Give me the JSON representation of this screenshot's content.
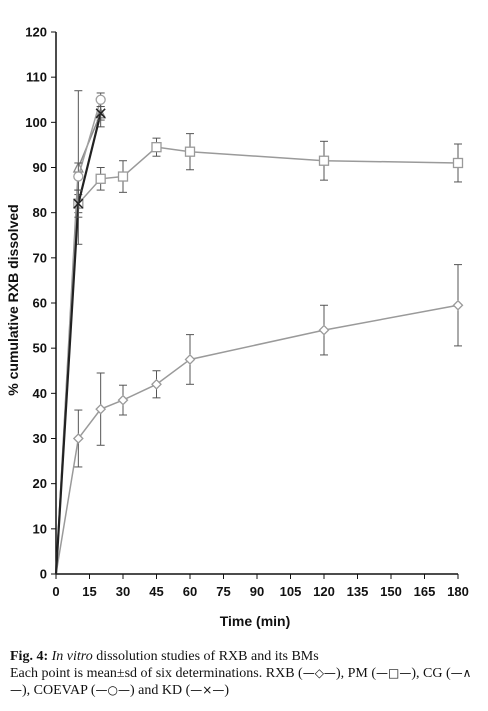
{
  "chart_data": {
    "type": "line",
    "title": "",
    "xlabel": "Time (min)",
    "ylabel": "% cumulative RXB dissolved",
    "xlim": [
      0,
      180
    ],
    "ylim": [
      0,
      120
    ],
    "xticks": [
      0,
      15,
      30,
      45,
      60,
      75,
      90,
      105,
      120,
      135,
      150,
      165,
      180
    ],
    "xtick_labels": [
      "0",
      "15",
      "30",
      "45",
      "60",
      "75",
      "90",
      "105",
      "120",
      "135",
      "150",
      "165",
      "180"
    ],
    "yticks": [
      0,
      10,
      20,
      30,
      40,
      50,
      60,
      70,
      80,
      90,
      100,
      110,
      120
    ],
    "ytick_labels": [
      "0",
      "10",
      "20",
      "30",
      "40",
      "50",
      "60",
      "70",
      "80",
      "90",
      "100",
      "110",
      "120"
    ],
    "grid": false,
    "legend": "none",
    "series": [
      {
        "name": "RXB",
        "marker": "diamond",
        "color": "#9a9a9a",
        "x": [
          0,
          10,
          20,
          30,
          45,
          60,
          120,
          180
        ],
        "y": [
          0,
          30,
          36.5,
          38.5,
          42,
          47.5,
          54,
          59.5
        ],
        "err": [
          0,
          6.3,
          8,
          3.3,
          3,
          5.5,
          5.5,
          9
        ]
      },
      {
        "name": "PM",
        "marker": "square",
        "color": "#9a9a9a",
        "x": [
          0,
          10,
          20,
          30,
          45,
          60,
          120,
          180
        ],
        "y": [
          0,
          82,
          87.5,
          88,
          94.5,
          93.5,
          91.5,
          91
        ],
        "err": [
          0,
          2,
          2.5,
          3.5,
          2,
          4,
          4.3,
          4.2
        ]
      },
      {
        "name": "CG",
        "marker": "triangle",
        "color": "#8a8a8a",
        "x": [
          0,
          10,
          20
        ],
        "y": [
          0,
          90,
          102
        ],
        "err": [
          0,
          17,
          3
        ]
      },
      {
        "name": "COEVAP",
        "marker": "circle",
        "color": "#a0a0a0",
        "x": [
          0,
          10,
          20
        ],
        "y": [
          0,
          88,
          105
        ],
        "err": [
          0,
          3,
          1.5
        ]
      },
      {
        "name": "KD",
        "marker": "x",
        "color": "#222222",
        "x": [
          0,
          10,
          20
        ],
        "y": [
          0,
          82,
          102
        ],
        "err": [
          0,
          3,
          1.5
        ]
      }
    ]
  },
  "caption": {
    "fig_label": "Fig. 4:",
    "title_italic": "In vitro",
    "title_rest": " dissolution studies of RXB and its BMs",
    "line2_prefix": "Each point is mean±sd of six determinations. RXB (",
    "rxb_symbol": "—◇—",
    "pm_prefix": "), PM (",
    "pm_symbol": "—□—",
    "cg_prefix": "), CG (",
    "cg_symbol": "—∧—",
    "coevap_prefix": "), COEVAP (",
    "coevap_symbol": "—○—",
    "kd_prefix": ") and KD (",
    "kd_symbol": "—×—",
    "suffix": ")"
  }
}
